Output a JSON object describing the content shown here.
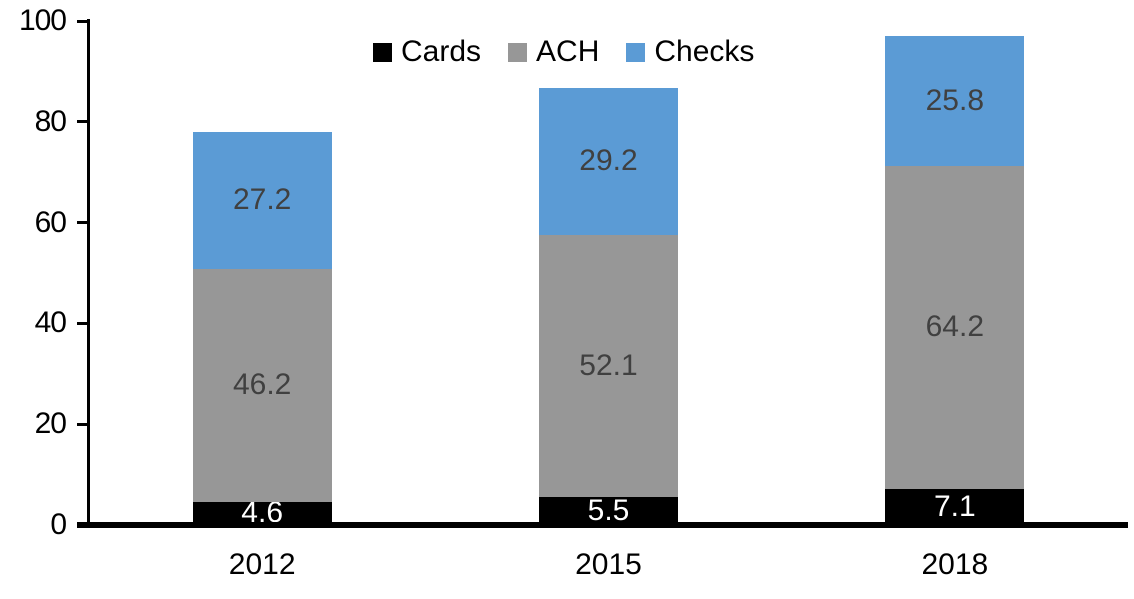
{
  "chart_data": {
    "type": "bar",
    "stacked": true,
    "title": "",
    "xlabel": "",
    "ylabel": "",
    "categories": [
      "2012",
      "2015",
      "2018"
    ],
    "series": [
      {
        "name": "Cards",
        "color": "#000000",
        "label_color": "#FFFFFF",
        "values": [
          4.6,
          5.5,
          7.1
        ]
      },
      {
        "name": "ACH",
        "color": "#979797",
        "label_color": "#404040",
        "values": [
          46.2,
          52.1,
          64.2
        ]
      },
      {
        "name": "Checks",
        "color": "#5B9BD5",
        "label_color": "#404040",
        "values": [
          27.2,
          29.2,
          25.8
        ]
      }
    ],
    "totals": [
      78.0,
      86.8,
      97.1
    ],
    "yticks": [
      0,
      20,
      40,
      60,
      80,
      100
    ],
    "ylim": [
      0,
      100
    ],
    "grid": false,
    "legend_position": "top",
    "value_label_decimals": 1
  },
  "legend": {
    "items": [
      "Cards",
      "ACH",
      "Checks"
    ]
  }
}
